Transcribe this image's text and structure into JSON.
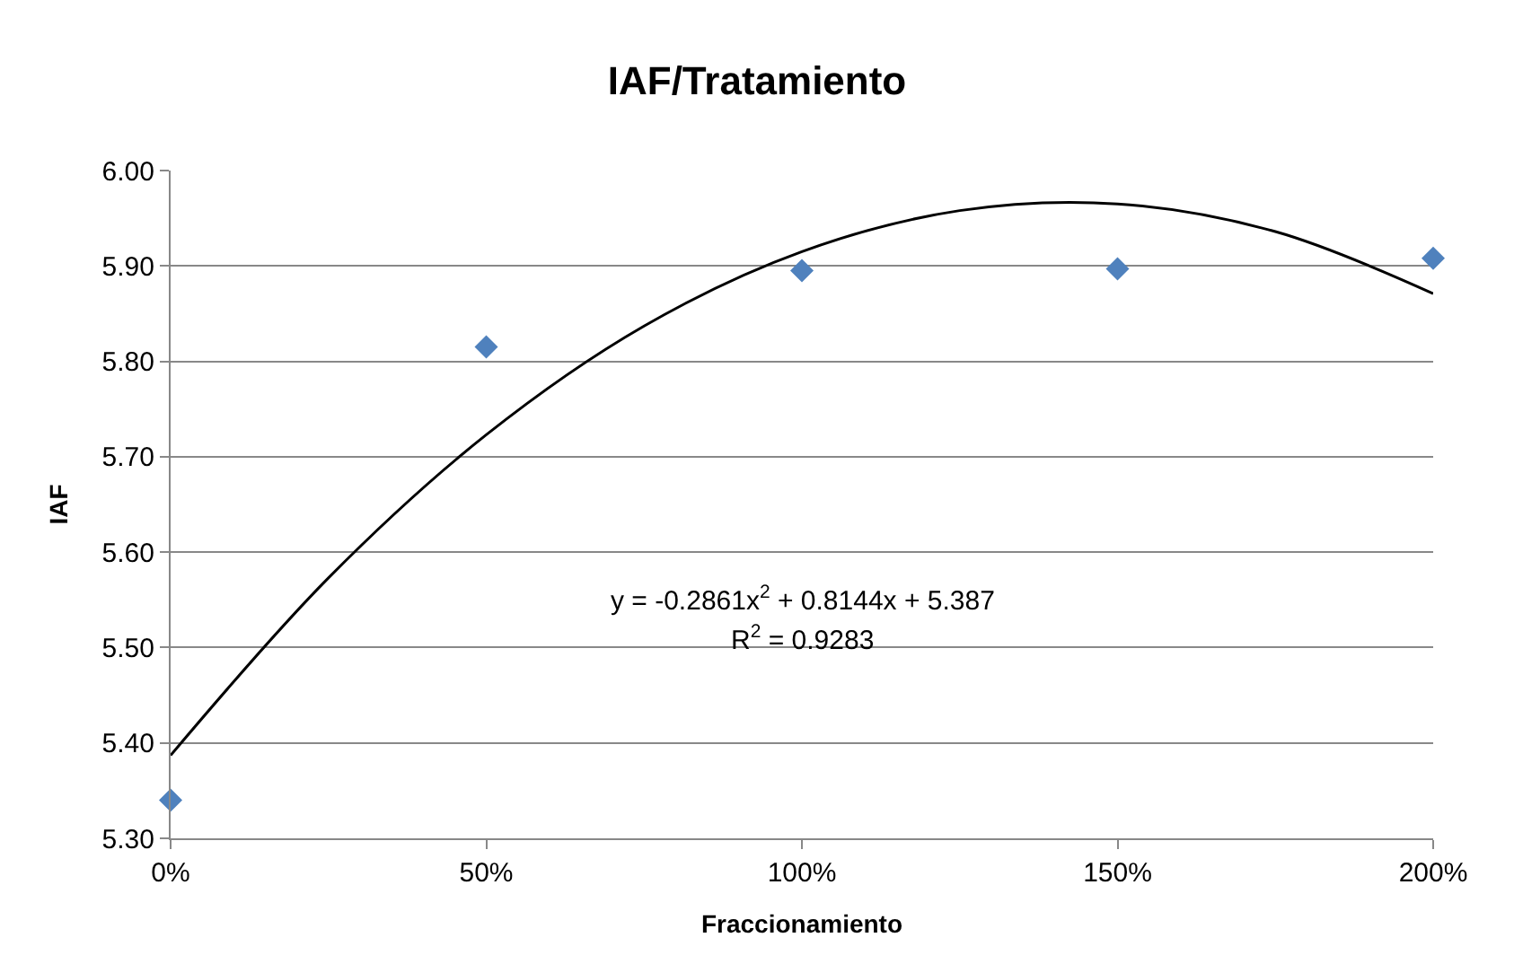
{
  "chart_data": {
    "type": "scatter",
    "title": "IAF/Tratamiento",
    "xlabel": "Fraccionamiento",
    "ylabel": "IAF",
    "series": [
      {
        "color": "#4f81bd",
        "marker": "diamond",
        "x": [
          0,
          50,
          100,
          150,
          200
        ],
        "values": [
          5.34,
          5.815,
          5.895,
          5.897,
          5.908
        ]
      },
      {
        "type": "line",
        "color": "#000000",
        "marker": "none",
        "line_style": "solid",
        "x": [
          0,
          25,
          50,
          75,
          100,
          125,
          150,
          175,
          200
        ],
        "values": [
          5.387,
          5.573,
          5.723,
          5.837,
          5.915,
          5.958,
          5.965,
          5.936,
          5.871
        ]
      }
    ],
    "xlim": [
      0,
      200
    ],
    "xticks": [
      {
        "value": 0,
        "label": "0%"
      },
      {
        "value": 50,
        "label": "50%"
      },
      {
        "value": 100,
        "label": "100%"
      },
      {
        "value": 150,
        "label": "150%"
      },
      {
        "value": 200,
        "label": "200%"
      }
    ],
    "ylim": [
      5.3,
      6.0
    ],
    "yticks": [
      {
        "value": 5.3,
        "label": "5.30"
      },
      {
        "value": 5.4,
        "label": "5.40"
      },
      {
        "value": 5.5,
        "label": "5.50"
      },
      {
        "value": 5.6,
        "label": "5.60"
      },
      {
        "value": 5.7,
        "label": "5.70"
      },
      {
        "value": 5.8,
        "label": "5.80"
      },
      {
        "value": 5.9,
        "label": "5.90"
      },
      {
        "value": 6.0,
        "label": "6.00"
      }
    ],
    "grid": "y",
    "annotations": [
      "y = -0.2861x$^{2}$ + 0.8144x + 5.387",
      "R$^{2}$ = 0.9283"
    ]
  }
}
